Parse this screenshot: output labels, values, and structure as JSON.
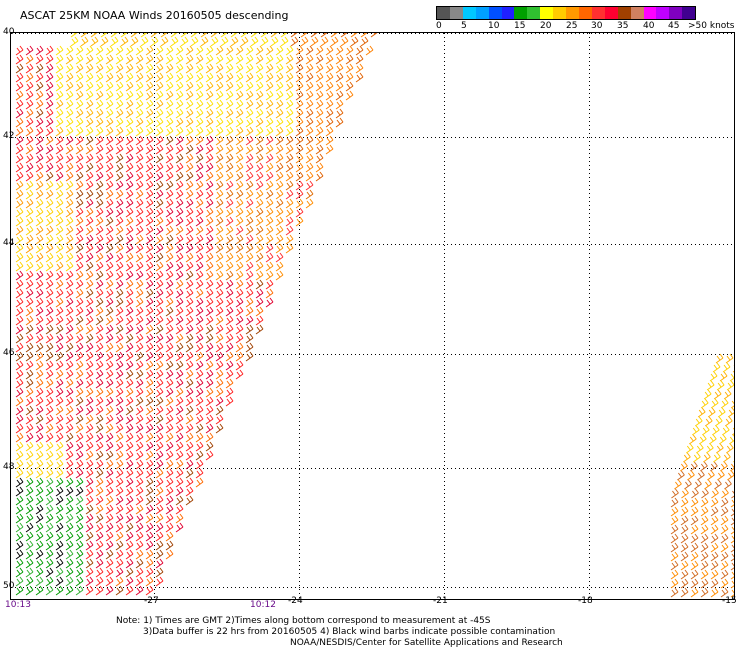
{
  "title": "ASCAT 25KM NOAA Winds 20160505 descending",
  "colorbar": {
    "colors": [
      "#555555",
      "#888888",
      "#00c8ff",
      "#00a0ff",
      "#0050ff",
      "#2020ff",
      "#00a000",
      "#30c030",
      "#ffff00",
      "#ffcc00",
      "#ff9900",
      "#ff6600",
      "#ff3030",
      "#ff0030",
      "#a04000",
      "#d08060",
      "#ff00ff",
      "#c000ff",
      "#8000c0",
      "#400090"
    ],
    "labels": [
      "0",
      "5",
      "10",
      "15",
      "20",
      "25",
      "30",
      "35",
      "40",
      "45",
      ">50 knots"
    ]
  },
  "map": {
    "lat_labels": [
      "40",
      "42",
      "44",
      "46",
      "48",
      "50"
    ],
    "lon_labels": [
      "-27",
      "-24",
      "-21",
      "-18",
      "-15"
    ],
    "lat_ticks": [
      -40,
      -42,
      -44,
      -46,
      -48,
      -50
    ],
    "lon_ticks": [
      -27,
      -24,
      -21,
      -18,
      -15
    ],
    "time_labels": [
      "10:13",
      "10:12"
    ]
  },
  "notes": {
    "line1": "Note: 1) Times are GMT 2)Times along bottom correspond to measurement at -45S",
    "line2": "3)Data buffer is 22 hrs from 20160505 4) Black wind barbs indicate possible contamination",
    "line3": "NOAA/NESDIS/Center for Satellite Applications and Research"
  }
}
